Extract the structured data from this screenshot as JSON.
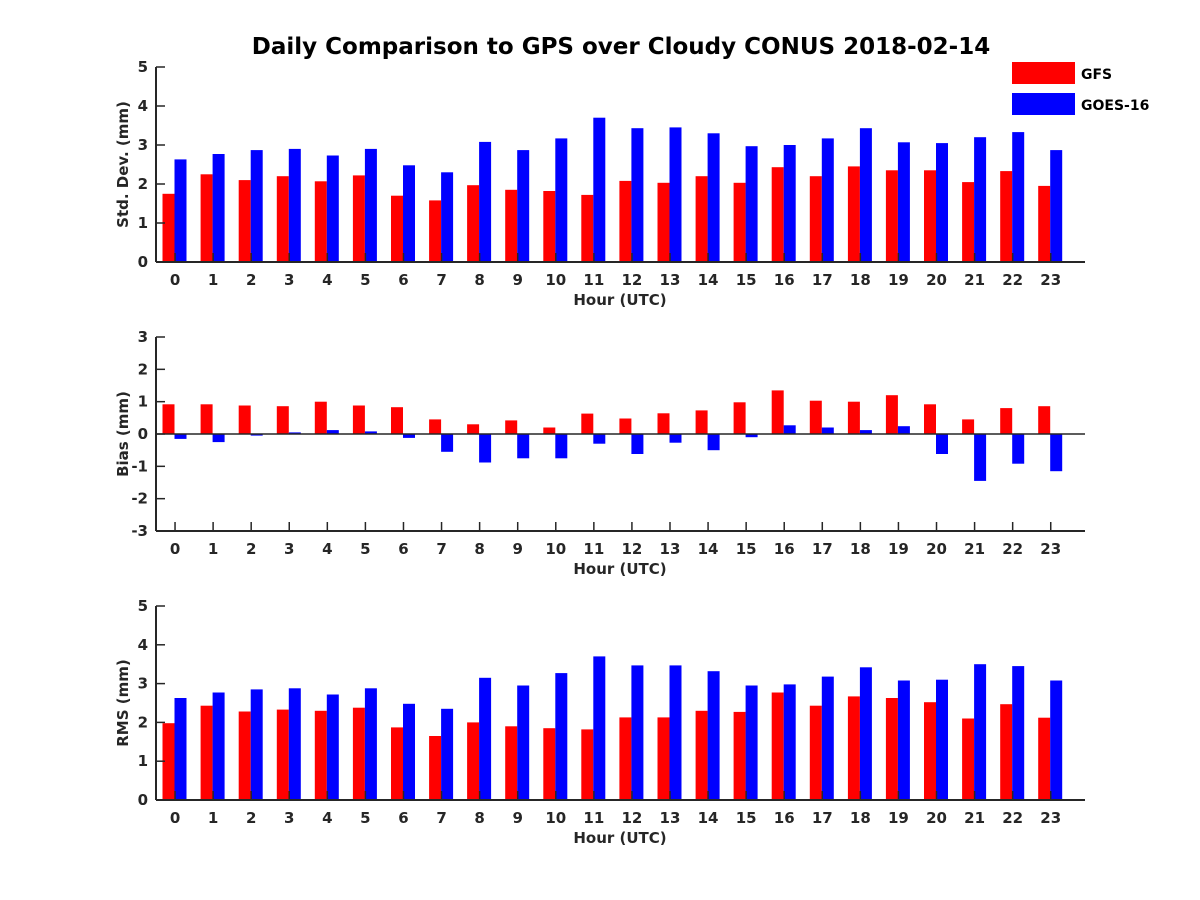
{
  "figure": {
    "title": "Daily Comparison to GPS over Cloudy CONUS 2018-02-14"
  },
  "legend": {
    "placement": "top-right",
    "entries": [
      {
        "name": "GFS",
        "color": "#ff0000"
      },
      {
        "name": "GOES-16",
        "color": "#0000ff"
      }
    ]
  },
  "chart_data": [
    {
      "type": "bar",
      "title": "Daily Comparison to GPS over Cloudy CONUS 2018-02-14",
      "xlabel": "Hour (UTC)",
      "ylabel": "Std. Dev. (mm)",
      "ylim": [
        0,
        5
      ],
      "yticks": [
        0,
        1,
        2,
        3,
        4,
        5
      ],
      "grid": false,
      "categories": [
        "0",
        "1",
        "2",
        "3",
        "4",
        "5",
        "6",
        "7",
        "8",
        "9",
        "10",
        "11",
        "12",
        "13",
        "14",
        "15",
        "16",
        "17",
        "18",
        "19",
        "20",
        "21",
        "22",
        "23"
      ],
      "series": [
        {
          "name": "GFS",
          "color": "#ff0000",
          "values": [
            1.75,
            2.25,
            2.1,
            2.2,
            2.07,
            2.22,
            1.7,
            1.58,
            1.97,
            1.85,
            1.82,
            1.72,
            2.08,
            2.03,
            2.2,
            2.03,
            2.43,
            2.2,
            2.45,
            2.35,
            2.35,
            2.05,
            2.33,
            1.95
          ]
        },
        {
          "name": "GOES-16",
          "color": "#0000ff",
          "values": [
            2.63,
            2.77,
            2.87,
            2.9,
            2.73,
            2.9,
            2.48,
            2.3,
            3.08,
            2.87,
            3.17,
            3.7,
            3.43,
            3.45,
            3.3,
            2.97,
            3.0,
            3.17,
            3.43,
            3.07,
            3.05,
            3.2,
            3.33,
            2.87
          ]
        }
      ]
    },
    {
      "type": "bar",
      "title": "",
      "xlabel": "Hour (UTC)",
      "ylabel": "Bias (mm)",
      "ylim": [
        -3,
        3
      ],
      "yticks": [
        -3,
        -2,
        -1,
        0,
        1,
        2,
        3
      ],
      "grid": false,
      "categories": [
        "0",
        "1",
        "2",
        "3",
        "4",
        "5",
        "6",
        "7",
        "8",
        "9",
        "10",
        "11",
        "12",
        "13",
        "14",
        "15",
        "16",
        "17",
        "18",
        "19",
        "20",
        "21",
        "22",
        "23"
      ],
      "series": [
        {
          "name": "GFS",
          "color": "#ff0000",
          "values": [
            0.92,
            0.92,
            0.88,
            0.86,
            1.0,
            0.88,
            0.83,
            0.45,
            0.3,
            0.42,
            0.2,
            0.63,
            0.48,
            0.64,
            0.73,
            0.98,
            1.35,
            1.03,
            1.0,
            1.2,
            0.92,
            0.45,
            0.8,
            0.86
          ]
        },
        {
          "name": "GOES-16",
          "color": "#0000ff",
          "values": [
            -0.15,
            -0.25,
            -0.05,
            0.05,
            0.12,
            0.08,
            -0.12,
            -0.55,
            -0.88,
            -0.75,
            -0.75,
            -0.3,
            -0.62,
            -0.27,
            -0.5,
            -0.1,
            0.27,
            0.2,
            0.12,
            0.24,
            -0.62,
            -1.45,
            -0.92,
            -1.15
          ]
        }
      ]
    },
    {
      "type": "bar",
      "title": "",
      "xlabel": "Hour (UTC)",
      "ylabel": "RMS (mm)",
      "ylim": [
        0,
        5
      ],
      "yticks": [
        0,
        1,
        2,
        3,
        4,
        5
      ],
      "grid": false,
      "categories": [
        "0",
        "1",
        "2",
        "3",
        "4",
        "5",
        "6",
        "7",
        "8",
        "9",
        "10",
        "11",
        "12",
        "13",
        "14",
        "15",
        "16",
        "17",
        "18",
        "19",
        "20",
        "21",
        "22",
        "23"
      ],
      "series": [
        {
          "name": "GFS",
          "color": "#ff0000",
          "values": [
            1.98,
            2.43,
            2.28,
            2.33,
            2.3,
            2.38,
            1.87,
            1.65,
            2.0,
            1.9,
            1.85,
            1.82,
            2.13,
            2.13,
            2.3,
            2.27,
            2.77,
            2.43,
            2.67,
            2.63,
            2.52,
            2.1,
            2.47,
            2.12
          ]
        },
        {
          "name": "GOES-16",
          "color": "#0000ff",
          "values": [
            2.63,
            2.77,
            2.85,
            2.88,
            2.72,
            2.88,
            2.48,
            2.35,
            3.15,
            2.95,
            3.27,
            3.7,
            3.47,
            3.47,
            3.32,
            2.95,
            2.98,
            3.18,
            3.42,
            3.08,
            3.1,
            3.5,
            3.45,
            3.08
          ]
        }
      ]
    }
  ]
}
